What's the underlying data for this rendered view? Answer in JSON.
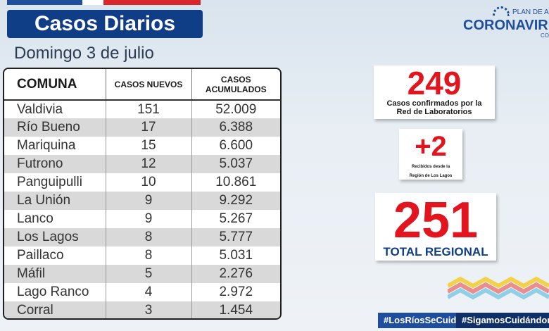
{
  "header": {
    "title": "Casos Diarios",
    "date": "Domingo 3 de julio"
  },
  "logo": {
    "plan_text": "PLAN DE ACC",
    "brand": "CORONAVIRU",
    "suffix": "CO"
  },
  "table": {
    "headers": [
      "COMUNA",
      "CASOS NUEVOS",
      "CASOS ACUMULADOS"
    ],
    "rows": [
      {
        "comuna": "Valdivia",
        "nuevos": "151",
        "acumulados": "52.009"
      },
      {
        "comuna": "Río Bueno",
        "nuevos": "17",
        "acumulados": "6.388"
      },
      {
        "comuna": "Mariquina",
        "nuevos": "15",
        "acumulados": "6.600"
      },
      {
        "comuna": "Futrono",
        "nuevos": "12",
        "acumulados": "5.037"
      },
      {
        "comuna": "Panguipulli",
        "nuevos": "10",
        "acumulados": "10.861"
      },
      {
        "comuna": "La Unión",
        "nuevos": "9",
        "acumulados": "9.292"
      },
      {
        "comuna": "Lanco",
        "nuevos": "9",
        "acumulados": "5.267"
      },
      {
        "comuna": "Los Lagos",
        "nuevos": "8",
        "acumulados": "5.777"
      },
      {
        "comuna": "Paillaco",
        "nuevos": "8",
        "acumulados": "5.031"
      },
      {
        "comuna": "Máfil",
        "nuevos": "5",
        "acumulados": "2.276"
      },
      {
        "comuna": "Lago Ranco",
        "nuevos": "4",
        "acumulados": "2.972"
      },
      {
        "comuna": "Corral",
        "nuevos": "3",
        "acumulados": "1.454"
      }
    ]
  },
  "stats": {
    "confirmed": {
      "value": "249",
      "label_line1": "Casos confirmados  por la",
      "label_line2": "Red de Laboratorios"
    },
    "received": {
      "value": "+2",
      "label_line1": "Recibidos  desde la",
      "label_line2": "Región de Los Lagos"
    },
    "total": {
      "value": "251",
      "label": "TOTAL REGIONAL"
    }
  },
  "hashtags": {
    "first": "#LosRíosSeCuida",
    "second": "#SigamosCuidándonos"
  },
  "colors": {
    "navy": "#0f3e86",
    "red": "#e2151f",
    "flag_blue": "#1f4e9c",
    "flag_red": "#d9262b"
  }
}
